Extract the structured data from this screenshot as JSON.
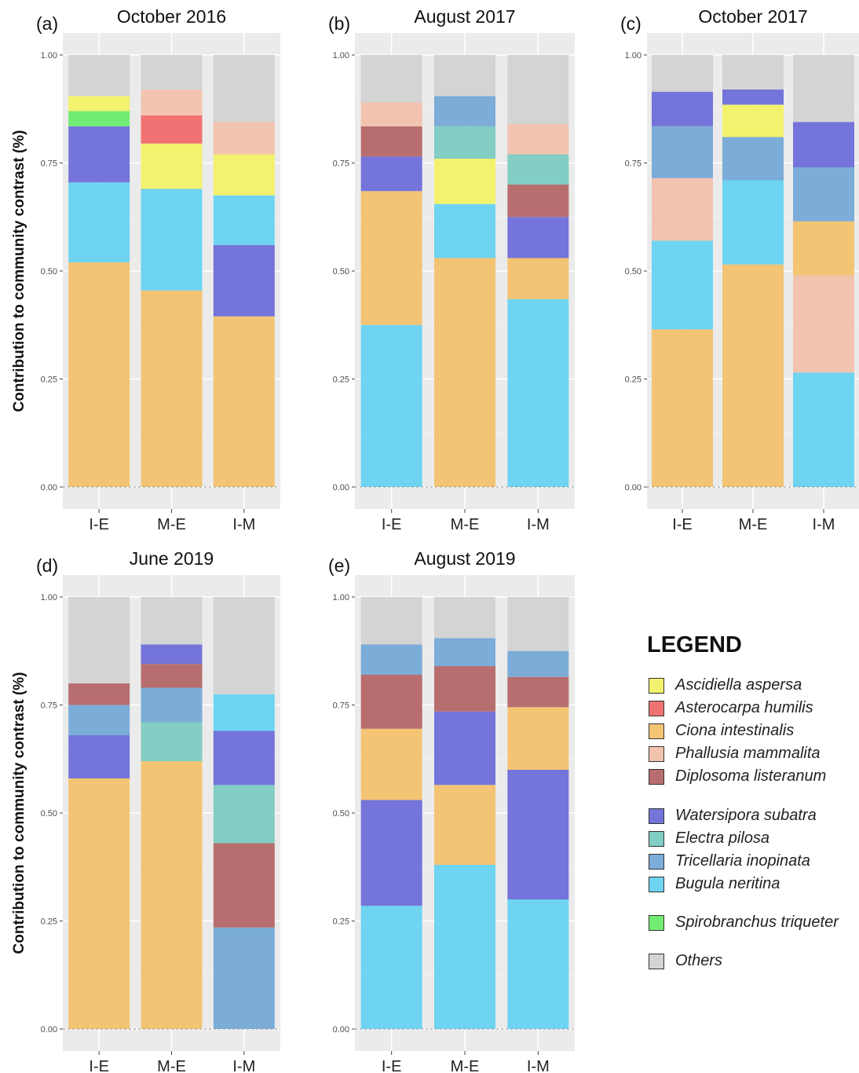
{
  "colors": {
    "Ascidiella aspersa": "#f2f26e",
    "Asterocarpa humilis": "#f07272",
    "Ciona intestinalis": "#f2c474",
    "Phallusia mammalita": "#f2c4b0",
    "Diplosoma listeranum": "#b86e6e",
    "Watersipora subatra": "#7474da",
    "Electra pilosa": "#82cdc4",
    "Tricellaria inopinata": "#7cacd8",
    "Bugula neritina": "#6ed4f2",
    "Spirobranchus triqueter": "#72ec72",
    "Others": "#d4d4d4"
  },
  "legend": {
    "title": "LEGEND",
    "items": [
      {
        "label": "Ascidiella aspersa",
        "color": "#f2f26e"
      },
      {
        "label": "Asterocarpa humilis",
        "color": "#f07272"
      },
      {
        "label": "Ciona intestinalis",
        "color": "#f2c474"
      },
      {
        "label": "Phallusia mammalita",
        "color": "#f2c4b0"
      },
      {
        "label": "Diplosoma listeranum",
        "color": "#b86e6e"
      },
      {
        "label": "Watersipora subatra",
        "color": "#7474da"
      },
      {
        "label": "Electra pilosa",
        "color": "#82cdc4"
      },
      {
        "label": "Tricellaria inopinata",
        "color": "#7cacd8"
      },
      {
        "label": "Bugula neritina",
        "color": "#6ed4f2"
      },
      {
        "label": "Spirobranchus triqueter",
        "color": "#72ec72"
      },
      {
        "label": "Others",
        "color": "#d4d4d4"
      }
    ]
  },
  "chart_data": [
    {
      "type": "bar",
      "stacked": true,
      "panel": "(a)",
      "title": "October 2016",
      "ylabel": "Contribution to community contrast (%)",
      "ylim": [
        0,
        1
      ],
      "yticks": [
        "0.00",
        "0.25",
        "0.50",
        "0.75",
        "1.00"
      ],
      "categories": [
        "I-E",
        "M-E",
        "I-M"
      ],
      "bars": [
        {
          "category": "I-E",
          "segments": [
            {
              "name": "Ciona intestinalis",
              "value": 0.52
            },
            {
              "name": "Bugula neritina",
              "value": 0.185
            },
            {
              "name": "Watersipora subatra",
              "value": 0.13
            },
            {
              "name": "Spirobranchus triqueter",
              "value": 0.035
            },
            {
              "name": "Ascidiella aspersa",
              "value": 0.035
            },
            {
              "name": "Others",
              "value": 0.095
            }
          ]
        },
        {
          "category": "M-E",
          "segments": [
            {
              "name": "Ciona intestinalis",
              "value": 0.455
            },
            {
              "name": "Bugula neritina",
              "value": 0.235
            },
            {
              "name": "Ascidiella aspersa",
              "value": 0.105
            },
            {
              "name": "Asterocarpa humilis",
              "value": 0.065
            },
            {
              "name": "Phallusia mammalita",
              "value": 0.06
            },
            {
              "name": "Others",
              "value": 0.08
            }
          ]
        },
        {
          "category": "I-M",
          "segments": [
            {
              "name": "Ciona intestinalis",
              "value": 0.395
            },
            {
              "name": "Watersipora subatra",
              "value": 0.165
            },
            {
              "name": "Bugula neritina",
              "value": 0.115
            },
            {
              "name": "Ascidiella aspersa",
              "value": 0.095
            },
            {
              "name": "Phallusia mammalita",
              "value": 0.075
            },
            {
              "name": "Others",
              "value": 0.155
            }
          ]
        }
      ]
    },
    {
      "type": "bar",
      "stacked": true,
      "panel": "(b)",
      "title": "August 2017",
      "ylabel": "",
      "ylim": [
        0,
        1
      ],
      "yticks": [
        "0.00",
        "0.25",
        "0.50",
        "0.75",
        "1.00"
      ],
      "categories": [
        "I-E",
        "M-E",
        "I-M"
      ],
      "bars": [
        {
          "category": "I-E",
          "segments": [
            {
              "name": "Bugula neritina",
              "value": 0.375
            },
            {
              "name": "Ciona intestinalis",
              "value": 0.31
            },
            {
              "name": "Watersipora subatra",
              "value": 0.08
            },
            {
              "name": "Diplosoma listeranum",
              "value": 0.07
            },
            {
              "name": "Phallusia mammalita",
              "value": 0.055
            },
            {
              "name": "Others",
              "value": 0.11
            }
          ]
        },
        {
          "category": "M-E",
          "segments": [
            {
              "name": "Ciona intestinalis",
              "value": 0.53
            },
            {
              "name": "Bugula neritina",
              "value": 0.125
            },
            {
              "name": "Ascidiella aspersa",
              "value": 0.105
            },
            {
              "name": "Electra pilosa",
              "value": 0.075
            },
            {
              "name": "Tricellaria inopinata",
              "value": 0.07
            },
            {
              "name": "Others",
              "value": 0.095
            }
          ]
        },
        {
          "category": "I-M",
          "segments": [
            {
              "name": "Bugula neritina",
              "value": 0.435
            },
            {
              "name": "Ciona intestinalis",
              "value": 0.095
            },
            {
              "name": "Watersipora subatra",
              "value": 0.095
            },
            {
              "name": "Diplosoma listeranum",
              "value": 0.075
            },
            {
              "name": "Electra pilosa",
              "value": 0.07
            },
            {
              "name": "Phallusia mammalita",
              "value": 0.07
            },
            {
              "name": "Others",
              "value": 0.16
            }
          ]
        }
      ]
    },
    {
      "type": "bar",
      "stacked": true,
      "panel": "(c)",
      "title": "October 2017",
      "ylabel": "",
      "ylim": [
        0,
        1
      ],
      "yticks": [
        "0.00",
        "0.25",
        "0.50",
        "0.75",
        "1.00"
      ],
      "categories": [
        "I-E",
        "M-E",
        "I-M"
      ],
      "bars": [
        {
          "category": "I-E",
          "segments": [
            {
              "name": "Ciona intestinalis",
              "value": 0.365
            },
            {
              "name": "Bugula neritina",
              "value": 0.205
            },
            {
              "name": "Phallusia mammalita",
              "value": 0.145
            },
            {
              "name": "Tricellaria inopinata",
              "value": 0.12
            },
            {
              "name": "Watersipora subatra",
              "value": 0.08
            },
            {
              "name": "Others",
              "value": 0.085
            }
          ]
        },
        {
          "category": "M-E",
          "segments": [
            {
              "name": "Ciona intestinalis",
              "value": 0.515
            },
            {
              "name": "Bugula neritina",
              "value": 0.195
            },
            {
              "name": "Tricellaria inopinata",
              "value": 0.1
            },
            {
              "name": "Ascidiella aspersa",
              "value": 0.075
            },
            {
              "name": "Watersipora subatra",
              "value": 0.035
            },
            {
              "name": "Others",
              "value": 0.08
            }
          ]
        },
        {
          "category": "I-M",
          "segments": [
            {
              "name": "Bugula neritina",
              "value": 0.265
            },
            {
              "name": "Phallusia mammalita",
              "value": 0.225
            },
            {
              "name": "Ciona intestinalis",
              "value": 0.125
            },
            {
              "name": "Tricellaria inopinata",
              "value": 0.125
            },
            {
              "name": "Watersipora subatra",
              "value": 0.105
            },
            {
              "name": "Others",
              "value": 0.155
            }
          ]
        }
      ]
    },
    {
      "type": "bar",
      "stacked": true,
      "panel": "(d)",
      "title": "June 2019",
      "ylabel": "Contribution to community contrast (%)",
      "ylim": [
        0,
        1
      ],
      "yticks": [
        "0.00",
        "0.25",
        "0.50",
        "0.75",
        "1.00"
      ],
      "categories": [
        "I-E",
        "M-E",
        "I-M"
      ],
      "bars": [
        {
          "category": "I-E",
          "segments": [
            {
              "name": "Ciona intestinalis",
              "value": 0.58
            },
            {
              "name": "Watersipora subatra",
              "value": 0.1
            },
            {
              "name": "Tricellaria inopinata",
              "value": 0.07
            },
            {
              "name": "Diplosoma listeranum",
              "value": 0.05
            },
            {
              "name": "Others",
              "value": 0.2
            }
          ]
        },
        {
          "category": "M-E",
          "segments": [
            {
              "name": "Ciona intestinalis",
              "value": 0.62
            },
            {
              "name": "Electra pilosa",
              "value": 0.09
            },
            {
              "name": "Tricellaria inopinata",
              "value": 0.08
            },
            {
              "name": "Diplosoma listeranum",
              "value": 0.055
            },
            {
              "name": "Watersipora subatra",
              "value": 0.045
            },
            {
              "name": "Others",
              "value": 0.11
            }
          ]
        },
        {
          "category": "I-M",
          "segments": [
            {
              "name": "Tricellaria inopinata",
              "value": 0.235
            },
            {
              "name": "Diplosoma listeranum",
              "value": 0.195
            },
            {
              "name": "Electra pilosa",
              "value": 0.135
            },
            {
              "name": "Watersipora subatra",
              "value": 0.125
            },
            {
              "name": "Bugula neritina",
              "value": 0.085
            },
            {
              "name": "Others",
              "value": 0.225
            }
          ]
        }
      ]
    },
    {
      "type": "bar",
      "stacked": true,
      "panel": "(e)",
      "title": "August 2019",
      "ylabel": "",
      "ylim": [
        0,
        1
      ],
      "yticks": [
        "0.00",
        "0.25",
        "0.50",
        "0.75",
        "1.00"
      ],
      "categories": [
        "I-E",
        "M-E",
        "I-M"
      ],
      "bars": [
        {
          "category": "I-E",
          "segments": [
            {
              "name": "Bugula neritina",
              "value": 0.285
            },
            {
              "name": "Watersipora subatra",
              "value": 0.245
            },
            {
              "name": "Ciona intestinalis",
              "value": 0.165
            },
            {
              "name": "Diplosoma listeranum",
              "value": 0.125
            },
            {
              "name": "Tricellaria inopinata",
              "value": 0.07
            },
            {
              "name": "Others",
              "value": 0.11
            }
          ]
        },
        {
          "category": "M-E",
          "segments": [
            {
              "name": "Bugula neritina",
              "value": 0.38
            },
            {
              "name": "Ciona intestinalis",
              "value": 0.185
            },
            {
              "name": "Watersipora subatra",
              "value": 0.17
            },
            {
              "name": "Diplosoma listeranum",
              "value": 0.105
            },
            {
              "name": "Tricellaria inopinata",
              "value": 0.065
            },
            {
              "name": "Others",
              "value": 0.095
            }
          ]
        },
        {
          "category": "I-M",
          "segments": [
            {
              "name": "Bugula neritina",
              "value": 0.3
            },
            {
              "name": "Watersipora subatra",
              "value": 0.3
            },
            {
              "name": "Ciona intestinalis",
              "value": 0.145
            },
            {
              "name": "Diplosoma listeranum",
              "value": 0.07
            },
            {
              "name": "Tricellaria inopinata",
              "value": 0.06
            },
            {
              "name": "Others",
              "value": 0.125
            }
          ]
        }
      ]
    }
  ]
}
